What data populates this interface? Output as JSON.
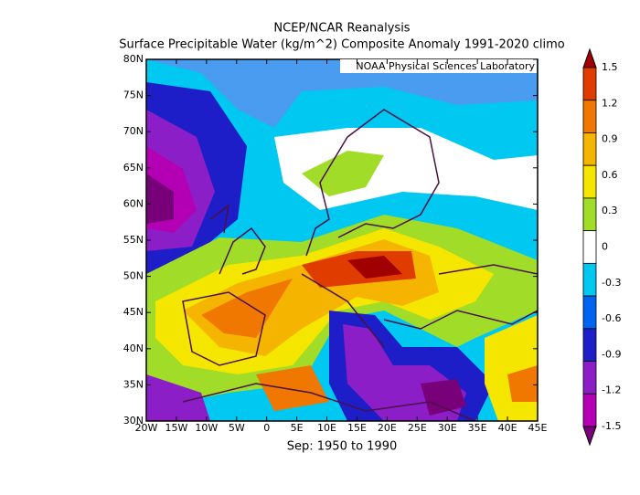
{
  "header": {
    "title": "NCEP/NCAR Reanalysis",
    "subtitle": "Surface Precipitable Water (kg/m^2) Composite Anomaly 1991-2020 climo"
  },
  "credit": "NOAA Physical Sciences Laboratory",
  "map": {
    "lat_labels": [
      "80N",
      "75N",
      "70N",
      "65N",
      "60N",
      "55N",
      "50N",
      "45N",
      "40N",
      "35N",
      "30N"
    ],
    "lon_labels": [
      "20W",
      "15W",
      "10W",
      "5W",
      "0",
      "5E",
      "10E",
      "15E",
      "20E",
      "25E",
      "30E",
      "35E",
      "40E",
      "45E"
    ]
  },
  "colorbar": {
    "labels": [
      "1.5",
      "1.2",
      "0.9",
      "0.6",
      "0.3",
      "0",
      "-0.3",
      "-0.6",
      "-0.9",
      "-1.2",
      "-1.5"
    ],
    "colors": [
      "#a00000",
      "#e03c00",
      "#f07800",
      "#f5b400",
      "#f5e600",
      "#a0dc28",
      "#ffffff",
      "#00c8f0",
      "#0064f0",
      "#1e1ec8",
      "#8c1ec8",
      "#b400b4",
      "#780078"
    ]
  },
  "footer": "Sep: 1950 to 1990"
}
